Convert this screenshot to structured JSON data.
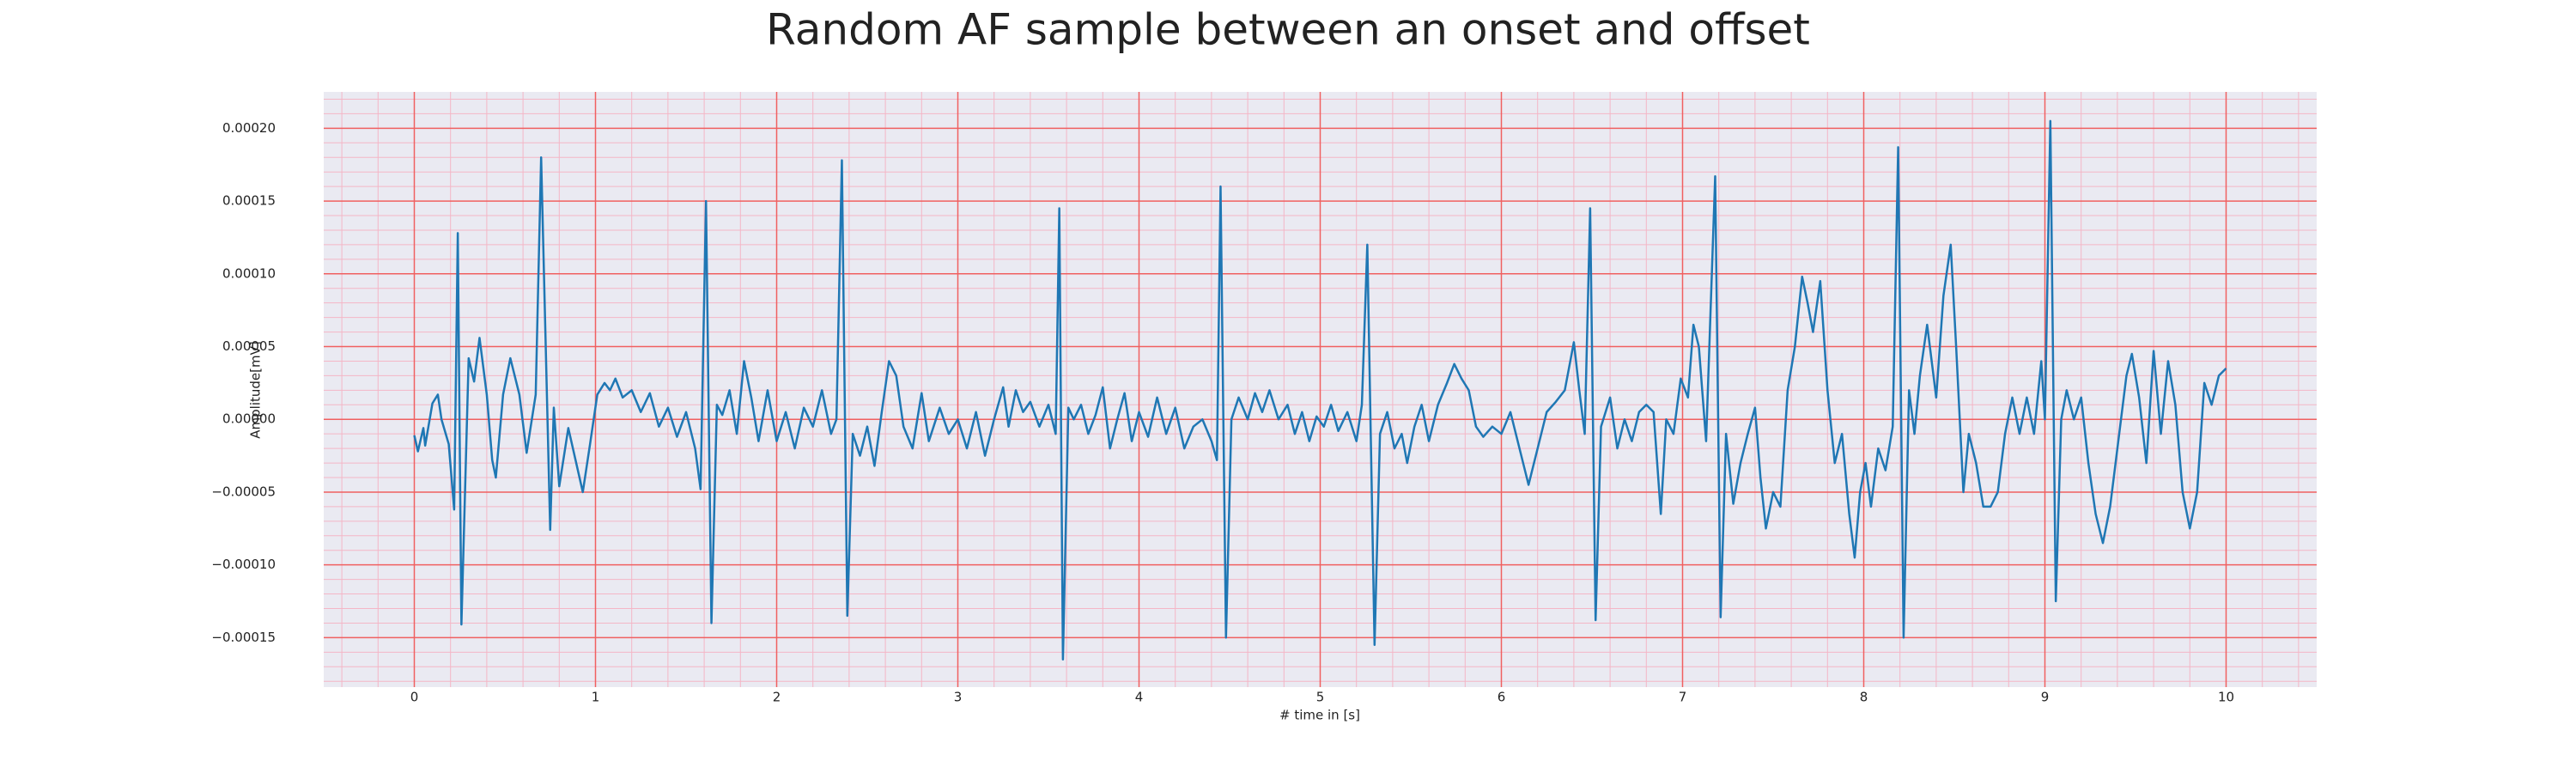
{
  "chart_data": {
    "type": "line",
    "title": "Random AF sample between an onset and offset",
    "xlabel": "# time in [s]",
    "ylabel": "Amplitude[mV]",
    "x": [
      0,
      0.02,
      0.05,
      0.06,
      0.1,
      0.13,
      0.15,
      0.19,
      0.22,
      0.24,
      0.26,
      0.3,
      0.33,
      0.36,
      0.4,
      0.43,
      0.45,
      0.49,
      0.53,
      0.58,
      0.62,
      0.67,
      0.7,
      0.75,
      0.77,
      0.8,
      0.85,
      0.89,
      0.93,
      0.97,
      1.01,
      1.05,
      1.08,
      1.11,
      1.15,
      1.2,
      1.25,
      1.3,
      1.35,
      1.4,
      1.45,
      1.5,
      1.55,
      1.58,
      1.61,
      1.64,
      1.67,
      1.7,
      1.74,
      1.78,
      1.82,
      1.86,
      1.9,
      1.95,
      2.0,
      2.05,
      2.1,
      2.15,
      2.2,
      2.25,
      2.3,
      2.33,
      2.36,
      2.39,
      2.42,
      2.46,
      2.5,
      2.54,
      2.58,
      2.62,
      2.66,
      2.7,
      2.75,
      2.8,
      2.84,
      2.9,
      2.95,
      3.0,
      3.05,
      3.1,
      3.15,
      3.2,
      3.25,
      3.28,
      3.32,
      3.36,
      3.4,
      3.45,
      3.5,
      3.54,
      3.56,
      3.58,
      3.61,
      3.64,
      3.68,
      3.72,
      3.76,
      3.8,
      3.84,
      3.88,
      3.92,
      3.96,
      4.0,
      4.05,
      4.1,
      4.15,
      4.2,
      4.25,
      4.3,
      4.35,
      4.4,
      4.43,
      4.45,
      4.48,
      4.51,
      4.55,
      4.6,
      4.64,
      4.68,
      4.72,
      4.77,
      4.82,
      4.86,
      4.9,
      4.94,
      4.98,
      5.02,
      5.06,
      5.1,
      5.15,
      5.2,
      5.23,
      5.26,
      5.3,
      5.33,
      5.37,
      5.41,
      5.45,
      5.48,
      5.52,
      5.56,
      5.6,
      5.65,
      5.7,
      5.74,
      5.78,
      5.82,
      5.86,
      5.9,
      5.95,
      6.0,
      6.05,
      6.1,
      6.15,
      6.2,
      6.25,
      6.3,
      6.35,
      6.4,
      6.43,
      6.46,
      6.49,
      6.52,
      6.55,
      6.6,
      6.64,
      6.68,
      6.72,
      6.76,
      6.8,
      6.84,
      6.88,
      6.91,
      6.95,
      6.99,
      7.03,
      7.06,
      7.09,
      7.13,
      7.18,
      7.21,
      7.24,
      7.28,
      7.32,
      7.36,
      7.4,
      7.43,
      7.46,
      7.5,
      7.54,
      7.58,
      7.62,
      7.66,
      7.69,
      7.72,
      7.76,
      7.8,
      7.84,
      7.88,
      7.92,
      7.95,
      7.98,
      8.01,
      8.04,
      8.08,
      8.12,
      8.16,
      8.19,
      8.22,
      8.25,
      8.28,
      8.31,
      8.35,
      8.4,
      8.44,
      8.48,
      8.51,
      8.55,
      8.58,
      8.62,
      8.66,
      8.7,
      8.74,
      8.78,
      8.82,
      8.86,
      8.9,
      8.94,
      8.98,
      9.0,
      9.03,
      9.06,
      9.09,
      9.12,
      9.16,
      9.2,
      9.24,
      9.28,
      9.32,
      9.36,
      9.4,
      9.45,
      9.48,
      9.52,
      9.56,
      9.6,
      9.64,
      9.68,
      9.72,
      9.76,
      9.8,
      9.84,
      9.88,
      9.92,
      9.96,
      10.0
    ],
    "series": [
      {
        "color": "#1f77b4",
        "values": [
          -1.1e-05,
          -2.2e-05,
          -6e-06,
          -1.8e-05,
          1.1e-05,
          1.7e-05,
          0,
          -1.7e-05,
          -6.2e-05,
          0.000128,
          -0.000141,
          4.2e-05,
          2.6e-05,
          5.6e-05,
          1.7e-05,
          -2.8e-05,
          -4e-05,
          1.7e-05,
          4.2e-05,
          1.7e-05,
          -2.3e-05,
          1.7e-05,
          0.00018,
          -7.6e-05,
          8e-06,
          -4.6e-05,
          -6e-06,
          -2.8e-05,
          -5e-05,
          -1.7e-05,
          1.7e-05,
          2.5e-05,
          2e-05,
          2.8e-05,
          1.5e-05,
          2e-05,
          5e-06,
          1.8e-05,
          -5e-06,
          8e-06,
          -1.2e-05,
          5e-06,
          -2e-05,
          -4.8e-05,
          0.00015,
          -0.00014,
          1e-05,
          3e-06,
          2e-05,
          -1e-05,
          4e-05,
          1.5e-05,
          -1.5e-05,
          2e-05,
          -1.5e-05,
          5e-06,
          -2e-05,
          8e-06,
          -5e-06,
          2e-05,
          -1e-05,
          0,
          0.000178,
          -0.000135,
          -1e-05,
          -2.5e-05,
          -5e-06,
          -3.2e-05,
          5e-06,
          4e-05,
          3e-05,
          -5e-06,
          -2e-05,
          1.8e-05,
          -1.5e-05,
          8e-06,
          -1e-05,
          0,
          -2e-05,
          5e-06,
          -2.5e-05,
          0,
          2.2e-05,
          -5e-06,
          2e-05,
          5e-06,
          1.2e-05,
          -5e-06,
          1e-05,
          -1e-05,
          0.000145,
          -0.000165,
          8e-06,
          0,
          1e-05,
          -1e-05,
          3e-06,
          2.2e-05,
          -2e-05,
          0,
          1.8e-05,
          -1.5e-05,
          5e-06,
          -1.2e-05,
          1.5e-05,
          -1e-05,
          8e-06,
          -2e-05,
          -5e-06,
          0,
          -1.5e-05,
          -2.8e-05,
          0.00016,
          -0.00015,
          0,
          1.5e-05,
          0,
          1.8e-05,
          5e-06,
          2e-05,
          0,
          1e-05,
          -1e-05,
          5e-06,
          -1.5e-05,
          2e-06,
          -5e-06,
          1e-05,
          -8e-06,
          5e-06,
          -1.5e-05,
          1e-05,
          0.00012,
          -0.000155,
          -1e-05,
          5e-06,
          -2e-05,
          -1e-05,
          -3e-05,
          -5e-06,
          1e-05,
          -1.5e-05,
          1e-05,
          2.5e-05,
          3.8e-05,
          2.8e-05,
          2e-05,
          -5e-06,
          -1.2e-05,
          -5e-06,
          -1e-05,
          5e-06,
          -2e-05,
          -4.5e-05,
          -2e-05,
          5e-06,
          1.2e-05,
          2e-05,
          5.3e-05,
          2e-05,
          -1e-05,
          0.000145,
          -0.000138,
          -5e-06,
          1.5e-05,
          -2e-05,
          0,
          -1.5e-05,
          5e-06,
          1e-05,
          5e-06,
          -6.5e-05,
          0,
          -1e-05,
          2.8e-05,
          1.5e-05,
          6.5e-05,
          5e-05,
          -1.5e-05,
          0.000167,
          -0.000136,
          -1e-05,
          -5.8e-05,
          -3e-05,
          -1e-05,
          8e-06,
          -4e-05,
          -7.5e-05,
          -5e-05,
          -6e-05,
          2e-05,
          5e-05,
          9.8e-05,
          8e-05,
          6e-05,
          9.5e-05,
          2e-05,
          -3e-05,
          -1e-05,
          -6.5e-05,
          -9.5e-05,
          -5e-05,
          -3e-05,
          -6e-05,
          -2e-05,
          -3.5e-05,
          -5e-06,
          0.000187,
          -0.00015,
          2e-05,
          -1e-05,
          3e-05,
          6.5e-05,
          1.5e-05,
          8.5e-05,
          0.00012,
          5e-05,
          -5e-05,
          -1e-05,
          -3e-05,
          -6e-05,
          -6e-05,
          -5e-05,
          -1e-05,
          1.5e-05,
          -1e-05,
          1.5e-05,
          -1e-05,
          4e-05,
          0,
          0.000205,
          -0.000125,
          0,
          2e-05,
          0,
          1.5e-05,
          -3e-05,
          -6.5e-05,
          -8.5e-05,
          -6e-05,
          -2e-05,
          3e-05,
          4.5e-05,
          1.5e-05,
          -3e-05,
          4.7e-05,
          -1e-05,
          4e-05,
          1e-05,
          -5e-05,
          -7.5e-05,
          -5e-05,
          2.5e-05,
          1e-05,
          3e-05,
          3.5e-05
        ]
      }
    ],
    "xlim": [
      -0.5,
      10.5
    ],
    "ylim": [
      -0.000184,
      0.000225
    ],
    "xticks": [
      0,
      1,
      2,
      3,
      4,
      5,
      6,
      7,
      8,
      9,
      10
    ],
    "yticks": [
      {
        "value": -0.00015,
        "label": "−0.00015"
      },
      {
        "value": -0.0001,
        "label": "−0.00010"
      },
      {
        "value": -5e-05,
        "label": "−0.00005"
      },
      {
        "value": 0,
        "label": "0.00000"
      },
      {
        "value": 5e-05,
        "label": "0.00005"
      },
      {
        "value": 0.0001,
        "label": "0.00010"
      },
      {
        "value": 0.00015,
        "label": "0.00015"
      },
      {
        "value": 0.0002,
        "label": "0.00020"
      }
    ],
    "grid": true,
    "minor_grid": true
  }
}
